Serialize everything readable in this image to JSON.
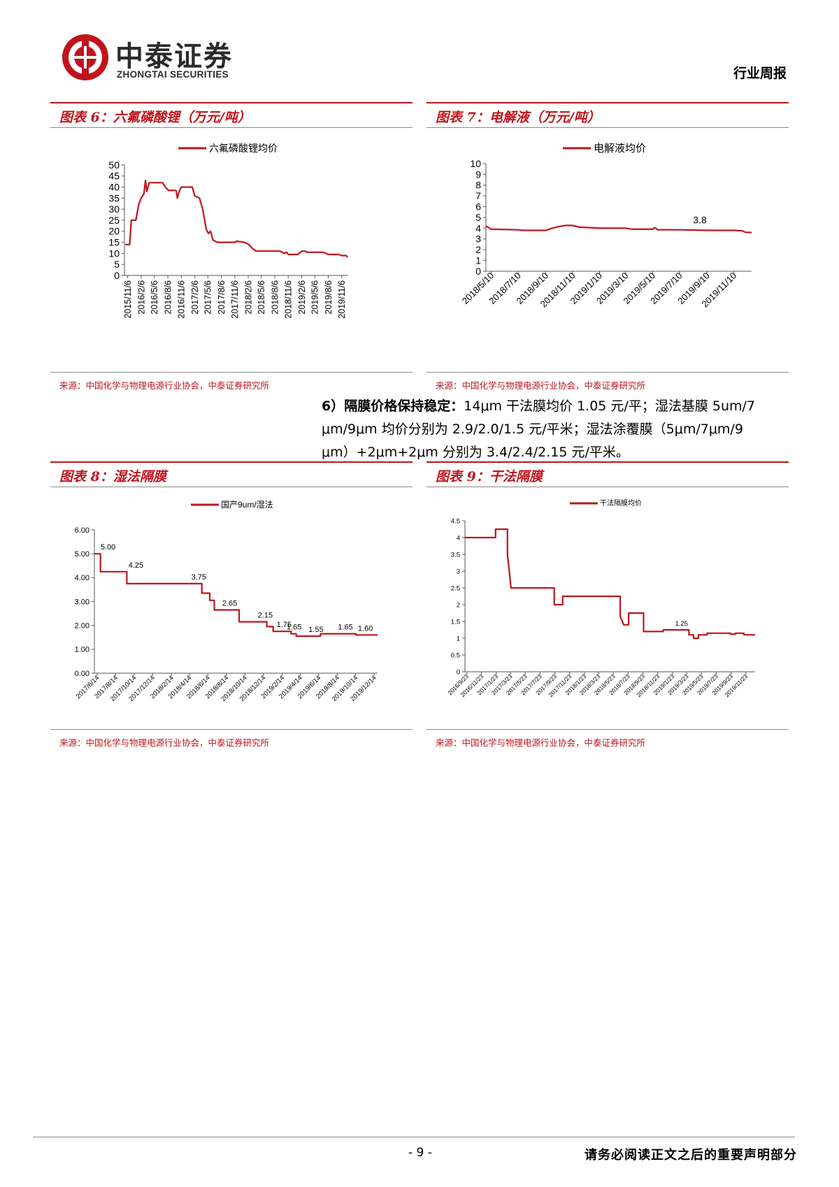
{
  "header": {
    "company_cn": "中泰证券",
    "company_en": "ZHONGTAI SECURITIES",
    "report_type": "行业周报"
  },
  "figures": [
    {
      "title": "图表 6：六氟磷酸锂（万元/吨）",
      "source": "来源：中国化学与物理电源行业协会，中泰证券研究所",
      "chart_data": {
        "type": "line",
        "legend": "六氟磷酸锂均价",
        "color": "#c0141c",
        "ylim": [
          0,
          50
        ],
        "yticks": [
          0,
          5,
          10,
          15,
          20,
          25,
          30,
          35,
          40,
          45,
          50
        ],
        "xlim": [
          "2015-10-15",
          "2019-12-20"
        ],
        "xtick_labels": [
          "2015/11/6",
          "2016/2/6",
          "2016/5/6",
          "2016/8/6",
          "2016/11/6",
          "2017/2/6",
          "2017/5/6",
          "2017/8/6",
          "2017/11/6",
          "2018/2/6",
          "2018/5/6",
          "2018/8/6",
          "2018/11/6",
          "2019/2/6",
          "2019/5/6",
          "2019/8/6",
          "2019/11/6"
        ],
        "xtick_dates": [
          "2015-11-06",
          "2016-02-06",
          "2016-05-06",
          "2016-08-06",
          "2016-11-06",
          "2017-02-06",
          "2017-05-06",
          "2017-08-06",
          "2017-11-06",
          "2018-02-06",
          "2018-05-06",
          "2018-08-06",
          "2018-11-06",
          "2019-02-06",
          "2019-05-06",
          "2019-08-06",
          "2019-11-06"
        ],
        "points": [
          [
            "2015-10-20",
            14
          ],
          [
            "2015-11-20",
            14
          ],
          [
            "2015-12-01",
            25
          ],
          [
            "2016-01-01",
            25
          ],
          [
            "2016-01-20",
            32
          ],
          [
            "2016-02-06",
            35
          ],
          [
            "2016-02-25",
            37
          ],
          [
            "2016-03-06",
            43
          ],
          [
            "2016-03-15",
            38
          ],
          [
            "2016-04-01",
            42
          ],
          [
            "2016-07-01",
            42
          ],
          [
            "2016-07-20",
            40
          ],
          [
            "2016-08-10",
            38.5
          ],
          [
            "2016-10-01",
            38.5
          ],
          [
            "2016-10-10",
            35
          ],
          [
            "2016-10-25",
            38.5
          ],
          [
            "2016-11-06",
            40
          ],
          [
            "2017-01-20",
            40
          ],
          [
            "2017-02-06",
            36
          ],
          [
            "2017-03-10",
            35
          ],
          [
            "2017-04-01",
            30
          ],
          [
            "2017-04-25",
            21
          ],
          [
            "2017-05-10",
            19
          ],
          [
            "2017-05-25",
            20
          ],
          [
            "2017-06-10",
            16
          ],
          [
            "2017-06-25",
            15.5
          ],
          [
            "2017-07-10",
            15
          ],
          [
            "2017-11-06",
            15
          ],
          [
            "2017-11-20",
            15.5
          ],
          [
            "2018-01-10",
            15
          ],
          [
            "2018-02-10",
            14
          ],
          [
            "2018-03-10",
            12
          ],
          [
            "2018-04-01",
            11
          ],
          [
            "2018-09-10",
            11
          ],
          [
            "2018-10-10",
            10
          ],
          [
            "2018-10-25",
            10.5
          ],
          [
            "2018-11-06",
            9.5
          ],
          [
            "2019-01-10",
            9.5
          ],
          [
            "2019-02-06",
            11
          ],
          [
            "2019-03-01",
            11
          ],
          [
            "2019-03-15",
            10.5
          ],
          [
            "2019-07-01",
            10.5
          ],
          [
            "2019-08-06",
            9.5
          ],
          [
            "2019-10-15",
            9.5
          ],
          [
            "2019-11-06",
            9
          ],
          [
            "2019-12-06",
            9
          ],
          [
            "2019-12-16",
            8.2
          ]
        ]
      }
    },
    {
      "title": "图表 7：电解液（万元/吨）",
      "source": "来源：中国化学与物理电源行业协会，中泰证券研究所",
      "chart_data": {
        "type": "line",
        "legend": "电解液均价",
        "color": "#c0141c",
        "ylim": [
          0,
          10
        ],
        "yticks": [
          0,
          1,
          2,
          3,
          4,
          5,
          6,
          7,
          8,
          9,
          10
        ],
        "xlim": [
          "2018-04-28",
          "2019-12-20"
        ],
        "xtick_labels": [
          "2018/5/10",
          "2018/7/10",
          "2018/9/10",
          "2018/11/10",
          "2019/1/10",
          "2019/3/10",
          "2019/5/10",
          "2019/7/10",
          "2019/9/10",
          "2019/11/10"
        ],
        "xtick_dates": [
          "2018-05-10",
          "2018-07-10",
          "2018-09-10",
          "2018-11-10",
          "2019-01-10",
          "2019-03-10",
          "2019-05-10",
          "2019-07-10",
          "2019-09-10",
          "2019-11-10"
        ],
        "annotation": {
          "text": "3.8",
          "date": "2019-08-25",
          "y": 3.8
        },
        "points": [
          [
            "2018-04-28",
            4.2
          ],
          [
            "2018-05-10",
            3.9
          ],
          [
            "2018-07-10",
            3.85
          ],
          [
            "2018-07-20",
            3.8
          ],
          [
            "2018-09-10",
            3.8
          ],
          [
            "2018-09-25",
            4.0
          ],
          [
            "2018-10-10",
            4.15
          ],
          [
            "2018-10-25",
            4.25
          ],
          [
            "2018-11-10",
            4.25
          ],
          [
            "2018-11-25",
            4.1
          ],
          [
            "2019-01-10",
            4.0
          ],
          [
            "2019-03-10",
            4.0
          ],
          [
            "2019-03-25",
            3.9
          ],
          [
            "2019-05-10",
            3.9
          ],
          [
            "2019-05-15",
            4.05
          ],
          [
            "2019-05-22",
            3.85
          ],
          [
            "2019-07-10",
            3.85
          ],
          [
            "2019-09-10",
            3.8
          ],
          [
            "2019-11-10",
            3.8
          ],
          [
            "2019-11-30",
            3.75
          ],
          [
            "2019-12-06",
            3.62
          ],
          [
            "2019-12-20",
            3.6
          ]
        ]
      }
    },
    {
      "title": "图表 8：湿法隔膜",
      "source": "来源：中国化学与物理电源行业协会，中泰证券研究所",
      "chart_data": {
        "type": "line",
        "legend": "国产9um/湿法",
        "color": "#c0141c",
        "ylim": [
          0,
          6
        ],
        "yticks": [
          "0.00",
          "1.00",
          "2.00",
          "3.00",
          "4.00",
          "5.00",
          "6.00"
        ],
        "xlim": [
          "2017-06-05",
          "2019-12-25"
        ],
        "xtick_labels": [
          "2017/6/14",
          "2017/8/14",
          "2017/10/14",
          "2017/12/14",
          "2018/2/14",
          "2018/4/14",
          "2018/6/14",
          "2018/8/14",
          "2018/10/14",
          "2018/12/14",
          "2019/2/14",
          "2019/4/14",
          "2019/6/14",
          "2019/8/14",
          "2019/10/14",
          "2019/12/14"
        ],
        "xtick_dates": [
          "2017-06-14",
          "2017-08-14",
          "2017-10-14",
          "2017-12-14",
          "2018-02-14",
          "2018-04-14",
          "2018-06-14",
          "2018-08-14",
          "2018-10-14",
          "2018-12-14",
          "2019-02-14",
          "2019-04-14",
          "2019-06-14",
          "2019-08-14",
          "2019-10-14",
          "2019-12-14"
        ],
        "data_labels": [
          {
            "text": "5.00",
            "date": "2017-07-20",
            "y": 5.0
          },
          {
            "text": "4.25",
            "date": "2017-10-20",
            "y": 4.25
          },
          {
            "text": "3.75",
            "date": "2018-05-15",
            "y": 3.75
          },
          {
            "text": "2.65",
            "date": "2018-08-25",
            "y": 2.65
          },
          {
            "text": "2.15",
            "date": "2018-12-20",
            "y": 2.15
          },
          {
            "text": "1.75",
            "date": "2019-02-20",
            "y": 1.75
          },
          {
            "text": "1.65",
            "date": "2019-03-25",
            "y": 1.65
          },
          {
            "text": "1.55",
            "date": "2019-06-05",
            "y": 1.55
          },
          {
            "text": "1.65",
            "date": "2019-09-10",
            "y": 1.65
          },
          {
            "text": "1.60",
            "date": "2019-11-15",
            "y": 1.6
          }
        ],
        "points": [
          [
            "2017-06-05",
            5.0
          ],
          [
            "2017-06-25",
            5.0
          ],
          [
            "2017-06-25",
            4.25
          ],
          [
            "2017-09-20",
            4.25
          ],
          [
            "2017-09-20",
            3.75
          ],
          [
            "2018-05-25",
            3.75
          ],
          [
            "2018-05-25",
            3.35
          ],
          [
            "2018-06-20",
            3.35
          ],
          [
            "2018-06-20",
            3.05
          ],
          [
            "2018-07-05",
            3.05
          ],
          [
            "2018-07-05",
            2.65
          ],
          [
            "2018-09-25",
            2.65
          ],
          [
            "2018-09-25",
            2.15
          ],
          [
            "2018-12-25",
            2.15
          ],
          [
            "2018-12-25",
            1.95
          ],
          [
            "2019-01-15",
            1.95
          ],
          [
            "2019-01-15",
            1.75
          ],
          [
            "2019-03-15",
            1.75
          ],
          [
            "2019-03-15",
            1.65
          ],
          [
            "2019-04-01",
            1.65
          ],
          [
            "2019-04-01",
            1.55
          ],
          [
            "2019-06-20",
            1.55
          ],
          [
            "2019-06-20",
            1.65
          ],
          [
            "2019-10-15",
            1.65
          ],
          [
            "2019-10-15",
            1.6
          ],
          [
            "2019-12-25",
            1.6
          ]
        ]
      }
    },
    {
      "title": "图表 9：干法隔膜",
      "source": "来源：中国化学与物理电源行业协会，中泰证券研究所",
      "chart_data": {
        "type": "line",
        "legend": "干法隔膜均价",
        "color": "#c0141c",
        "ylim": [
          0,
          4.5
        ],
        "yticks": [
          "0",
          "0.5",
          "1",
          "1.5",
          "2",
          "2.5",
          "3",
          "3.5",
          "4",
          "4.5"
        ],
        "xlim": [
          "2016-09-15",
          "2019-12-31"
        ],
        "xtick_labels": [
          "2016/9/23",
          "2016/11/23",
          "2017/1/23",
          "2017/3/23",
          "2017/5/23",
          "2017/7/23",
          "2017/9/23",
          "2017/11/23",
          "2018/1/23",
          "2018/3/23",
          "2018/5/23",
          "2018/7/23",
          "2018/9/23",
          "2018/11/23",
          "2019/1/23",
          "2019/3/23",
          "2019/5/23",
          "2019/7/23",
          "2019/9/23",
          "2019/11/23"
        ],
        "xtick_dates": [
          "2016-09-23",
          "2016-11-23",
          "2017-01-23",
          "2017-03-23",
          "2017-05-23",
          "2017-07-23",
          "2017-09-23",
          "2017-11-23",
          "2018-01-23",
          "2018-03-23",
          "2018-05-23",
          "2018-07-23",
          "2018-09-23",
          "2018-11-23",
          "2019-01-23",
          "2019-03-23",
          "2019-05-23",
          "2019-07-23",
          "2019-09-23",
          "2019-11-23"
        ],
        "annotation": {
          "text": "1.25",
          "date": "2019-03-01",
          "y": 1.25
        },
        "points": [
          [
            "2016-09-15",
            4.0
          ],
          [
            "2017-01-20",
            4.0
          ],
          [
            "2017-01-20",
            4.25
          ],
          [
            "2017-03-10",
            4.25
          ],
          [
            "2017-03-10",
            3.5
          ],
          [
            "2017-03-25",
            2.5
          ],
          [
            "2017-09-20",
            2.5
          ],
          [
            "2017-09-20",
            2.0
          ],
          [
            "2017-10-25",
            2.0
          ],
          [
            "2017-10-25",
            2.25
          ],
          [
            "2018-06-20",
            2.25
          ],
          [
            "2018-06-20",
            1.65
          ],
          [
            "2018-07-05",
            1.4
          ],
          [
            "2018-07-25",
            1.4
          ],
          [
            "2018-07-25",
            1.75
          ],
          [
            "2018-09-25",
            1.75
          ],
          [
            "2018-09-25",
            1.2
          ],
          [
            "2018-12-15",
            1.2
          ],
          [
            "2018-12-15",
            1.25
          ],
          [
            "2019-04-01",
            1.25
          ],
          [
            "2019-04-01",
            1.1
          ],
          [
            "2019-04-20",
            1.1
          ],
          [
            "2019-04-20",
            1.0
          ],
          [
            "2019-05-10",
            1.0
          ],
          [
            "2019-05-10",
            1.1
          ],
          [
            "2019-06-15",
            1.1
          ],
          [
            "2019-06-15",
            1.15
          ],
          [
            "2019-09-20",
            1.15
          ],
          [
            "2019-09-20",
            1.12
          ],
          [
            "2019-10-10",
            1.12
          ],
          [
            "2019-10-10",
            1.15
          ],
          [
            "2019-11-15",
            1.15
          ],
          [
            "2019-11-15",
            1.1
          ],
          [
            "2019-12-31",
            1.1
          ]
        ]
      }
    }
  ],
  "paragraph": {
    "heading": "6）隔膜价格保持稳定：",
    "line1_rest": "14μm 干法膜均价 1.05 元/平；湿法基膜 5um/7",
    "line2": "μm/9μm 均价分别为 2.9/2.0/1.5 元/平米；湿法涂覆膜（5μm/7μm/9",
    "line3": "μm）+2μm+2μm 分别为 3.4/2.4/2.15 元/平米。"
  },
  "footer": {
    "page_number": "- 9 -",
    "disclaimer": "请务必阅读正文之后的重要声明部分"
  }
}
